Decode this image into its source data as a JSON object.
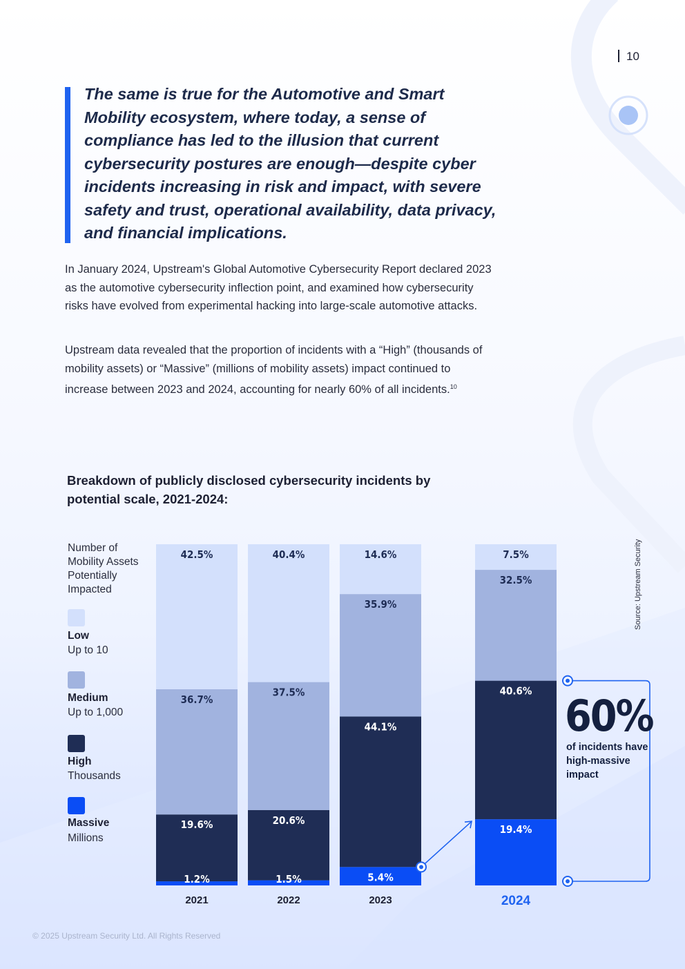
{
  "page_number": "10",
  "quote": "The same is true for the Automotive and Smart Mobility ecosystem, where today, a sense of compliance has led to the illusion that current cybersecurity postures are enough—despite cyber incidents increasing in risk and impact, with severe safety and trust, operational availability, data privacy, and financial implications.",
  "paragraph1": "In January 2024, Upstream's Global Automotive Cybersecurity Report declared 2023 as the automotive cybersecurity inflection point, and examined how cybersecurity risks have evolved from experimental hacking into large-scale automotive attacks.",
  "paragraph2": "Upstream data revealed that the proportion of incidents with a “High” (thousands of mobility assets) or “Massive” (millions of mobility assets) impact continued to increase between 2023 and 2024, accounting for nearly 60% of all incidents.",
  "paragraph2_footnote": "10",
  "legend": {
    "heading": "Number of Mobility Assets Potentially Impacted",
    "items": [
      {
        "name": "Low",
        "sub": "Up to 10",
        "color": "#d3e0fc"
      },
      {
        "name": "Medium",
        "sub": "Up to 1,000",
        "color": "#a1b3df"
      },
      {
        "name": "High",
        "sub": "Thousands",
        "color": "#1f2d55"
      },
      {
        "name": "Massive",
        "sub": "Millions",
        "color": "#0a4df5"
      }
    ]
  },
  "chart_data": {
    "type": "bar",
    "stacked": true,
    "title": "Breakdown of publicly disclosed cybersecurity incidents by potential scale, 2021-2024:",
    "categories": [
      "2021",
      "2022",
      "2023",
      "2024"
    ],
    "ylim": [
      0,
      100
    ],
    "series": [
      {
        "name": "Massive",
        "color": "#0a4df5",
        "values": [
          1.2,
          1.5,
          5.4,
          19.4
        ],
        "labels": [
          "1.2%",
          "1.5%",
          "5.4%",
          "19.4%"
        ]
      },
      {
        "name": "High",
        "color": "#1f2d55",
        "values": [
          19.6,
          20.6,
          44.1,
          40.6
        ],
        "labels": [
          "19.6%",
          "20.6%",
          "44.1%",
          "40.6%"
        ]
      },
      {
        "name": "Medium",
        "color": "#a1b3df",
        "values": [
          36.7,
          37.5,
          35.9,
          32.5
        ],
        "labels": [
          "36.7%",
          "37.5%",
          "35.9%",
          "32.5%"
        ]
      },
      {
        "name": "Low",
        "color": "#d3e0fc",
        "values": [
          42.5,
          40.4,
          14.6,
          7.5
        ],
        "labels": [
          "42.5%",
          "40.4%",
          "14.6%",
          "7.5%"
        ]
      }
    ],
    "highlight_category": "2024",
    "highlight_color": "#1f63f0"
  },
  "callout": {
    "big": "60%",
    "text": "of incidents have high-massive impact"
  },
  "source": "Source: Upstream Security",
  "footer": "© 2025 Upstream Security Ltd. All Rights Reserved"
}
